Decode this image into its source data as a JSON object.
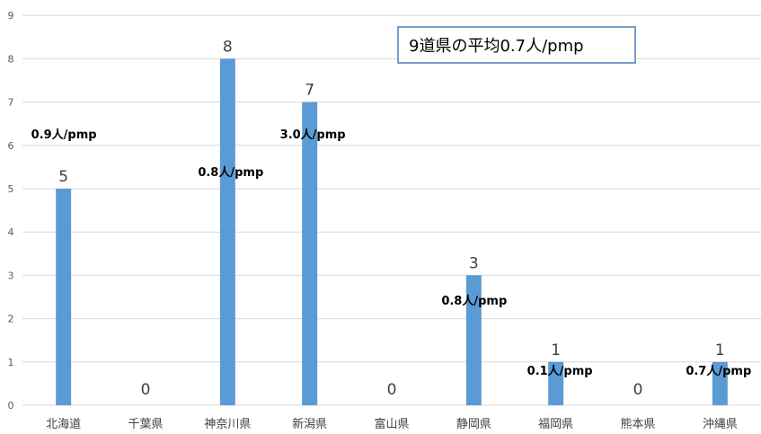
{
  "chart_data": {
    "type": "bar",
    "categories": [
      "北海道",
      "千葉県",
      "神奈川県",
      "新潟県",
      "富山県",
      "静岡県",
      "福岡県",
      "熊本県",
      "沖縄県"
    ],
    "values": [
      5,
      0,
      8,
      7,
      0,
      3,
      1,
      0,
      1
    ],
    "value_labels": [
      "5",
      "0",
      "8",
      "7",
      "0",
      "3",
      "1",
      "0",
      "1"
    ],
    "per_million_labels": [
      "0.9人/pmp",
      "",
      "0.8人/pmp",
      "3.0人/pmp",
      "",
      "0.8人/pmp",
      "0.1人/pmp",
      "",
      "0.7人/pmp"
    ],
    "annotation": "9道県の平均0.7人/pmp",
    "y_ticks": [
      "0",
      "1",
      "2",
      "3",
      "4",
      "5",
      "6",
      "7",
      "8",
      "9"
    ],
    "ylim": [
      0,
      9
    ],
    "grid": true,
    "bar_color": "#5b9bd5",
    "grid_color": "#d9d9d9",
    "title": "",
    "xlabel": "",
    "ylabel": ""
  }
}
